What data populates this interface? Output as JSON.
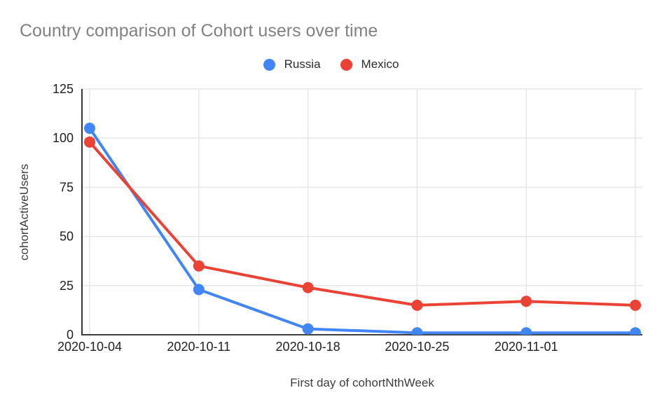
{
  "title": "Country comparison of Cohort users over time",
  "chart_data": {
    "type": "line",
    "title": "Country comparison of Cohort users over time",
    "xlabel": "First day of cohortNthWeek",
    "ylabel": "cohortActiveUsers",
    "x_labels": [
      "2020-10-04",
      "2020-10-11",
      "2020-10-18",
      "2020-10-25",
      "2020-11-01",
      ""
    ],
    "series": [
      {
        "name": "Russia",
        "color": "#4285F4",
        "values": [
          105,
          23,
          3,
          1,
          1,
          1
        ]
      },
      {
        "name": "Mexico",
        "color": "#EA4335",
        "values": [
          98,
          35,
          24,
          15,
          17,
          15
        ]
      }
    ],
    "ylim": [
      0,
      125
    ],
    "yticks": [
      0,
      25,
      50,
      75,
      100,
      125
    ],
    "grid": true,
    "legend_position": "top-center"
  },
  "colors": {
    "series_russia": "#4285F4",
    "series_mexico": "#EA4335",
    "title_text": "#818181",
    "tick_text": "#212121",
    "axis_title_text": "#3d3d3d"
  }
}
